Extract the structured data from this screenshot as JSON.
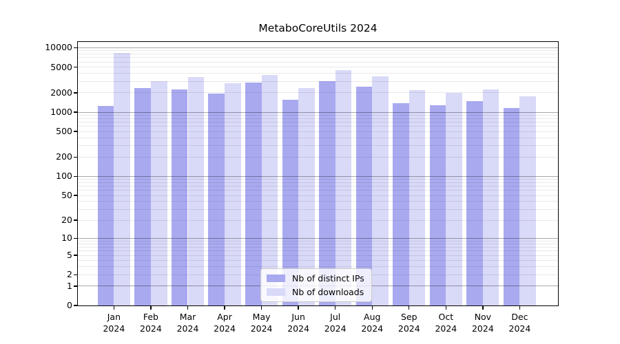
{
  "chart_data": {
    "type": "bar",
    "title": "MetaboCoreUtils 2024",
    "year": "2024",
    "months": [
      "Jan",
      "Feb",
      "Mar",
      "Apr",
      "May",
      "Jun",
      "Jul",
      "Aug",
      "Sep",
      "Oct",
      "Nov",
      "Dec"
    ],
    "series": [
      {
        "name": "Nb of distinct IPs",
        "color": "#a9a9f0",
        "values": [
          1250,
          2380,
          2260,
          1940,
          2910,
          1540,
          3030,
          2510,
          1380,
          1280,
          1470,
          1170
        ]
      },
      {
        "name": "Nb of downloads",
        "color": "#d9d9f8",
        "values": [
          8340,
          3010,
          3490,
          2840,
          3790,
          2380,
          4470,
          3580,
          2220,
          2000,
          2260,
          1770
        ]
      }
    ],
    "yscale": "log1p",
    "ylim": [
      0,
      12300
    ],
    "y_tick_values": [
      10000,
      5000,
      2000,
      1000,
      500,
      200,
      100,
      50,
      20,
      10,
      5,
      2,
      1,
      0
    ],
    "y_tick_labels": [
      "10000",
      "5000",
      "2000",
      "1000",
      "500",
      "200",
      "100",
      "50",
      "20",
      "10",
      "5",
      "2",
      "1",
      "0"
    ],
    "grid": true,
    "legend_position": "bottom-center"
  }
}
